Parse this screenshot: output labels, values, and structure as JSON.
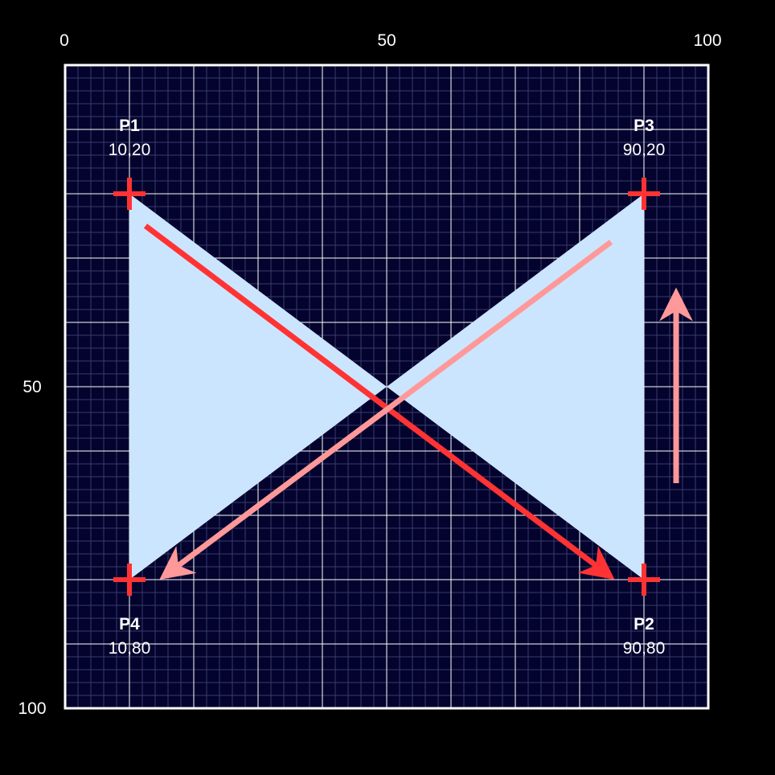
{
  "axis": {
    "top_labels": [
      "0",
      "50",
      "100"
    ],
    "left_labels": [
      "50",
      "100"
    ]
  },
  "points": [
    {
      "id": "P1",
      "name": "P1",
      "coord": "10,20",
      "x": 10,
      "y": 20
    },
    {
      "id": "P2",
      "name": "P2",
      "coord": "90,80",
      "x": 90,
      "y": 80
    },
    {
      "id": "P3",
      "name": "P3",
      "coord": "90,20",
      "x": 90,
      "y": 20
    },
    {
      "id": "P4",
      "name": "P4",
      "coord": "10,80",
      "x": 10,
      "y": 80
    }
  ],
  "colors": {
    "background": "#000000",
    "plot_background": "#03032e",
    "grid_minor": "#3b3b6e",
    "grid_major": "#ffffff",
    "frame": "#ffffff",
    "shape_fill": "#cce5ff",
    "marker": "#ff3333",
    "arrow_dark": "#ff3333",
    "arrow_light": "#ff9999",
    "text": "#ffffff"
  }
}
